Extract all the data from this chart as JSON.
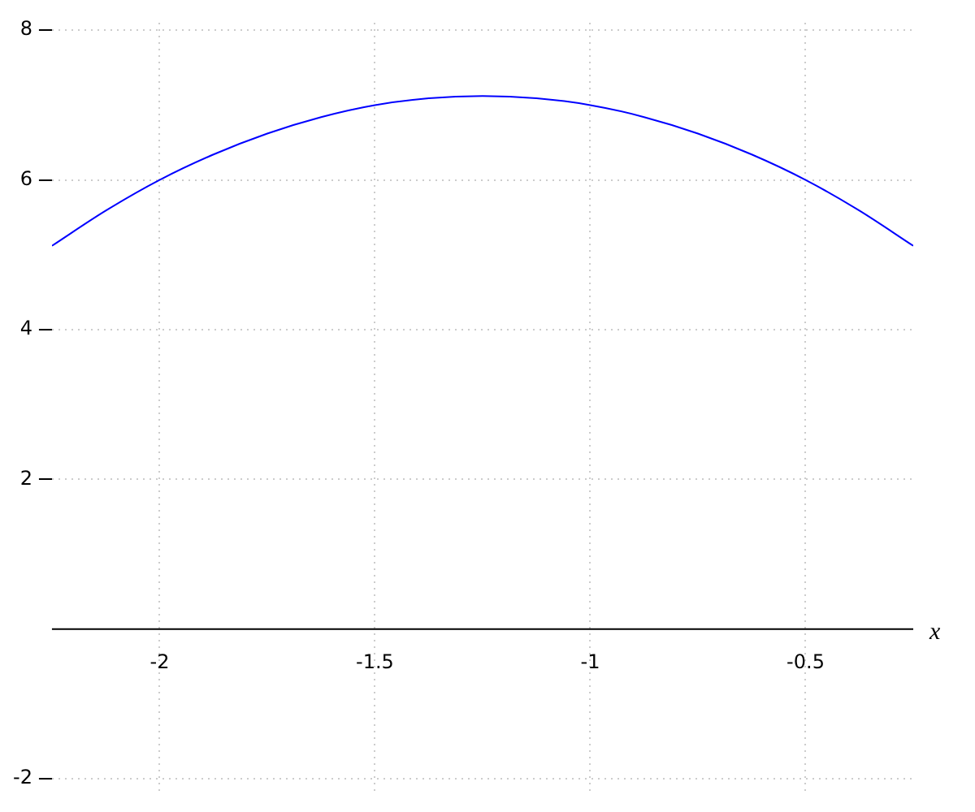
{
  "chart_data": {
    "type": "line",
    "xlabel": "x",
    "x": [
      -2.25,
      -2.125,
      -2,
      -1.875,
      -1.75,
      -1.625,
      -1.5,
      -1.375,
      -1.25,
      -1.125,
      -1,
      -0.875,
      -0.75,
      -0.625,
      -0.5,
      -0.375,
      -0.25
    ],
    "series": [
      {
        "color": "#0000ff",
        "values": [
          5.12,
          5.59,
          6.0,
          6.34,
          6.62,
          6.84,
          7.0,
          7.09,
          7.12,
          7.09,
          7.0,
          6.84,
          6.62,
          6.34,
          6.0,
          5.59,
          5.12
        ]
      }
    ],
    "xlim": [
      -2.25,
      -0.25
    ],
    "ylim": [
      -2.2,
      8.1
    ],
    "xticks": [
      -2,
      -1.5,
      -1,
      -0.5
    ],
    "yticks": [
      -2,
      2,
      4,
      6,
      8
    ],
    "grid": true,
    "marker": "none",
    "line_style": "solid",
    "legend": false
  }
}
